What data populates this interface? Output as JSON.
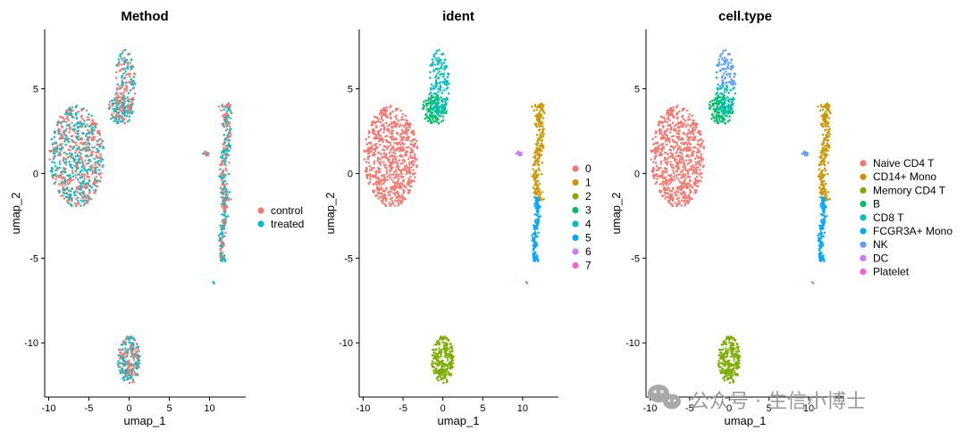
{
  "chart_data": [
    {
      "type": "scatter",
      "title": "Method",
      "xlabel": "umap_1",
      "ylabel": "umap_2",
      "xlim": [
        -10.5,
        14.5
      ],
      "ylim": [
        -13.2,
        8.5
      ],
      "xticks": [
        -10,
        -5,
        0,
        5,
        10
      ],
      "yticks": [
        -10,
        -5,
        0,
        5
      ],
      "grid": false,
      "legend": "right",
      "color_by": "group",
      "series": [
        {
          "name": "control",
          "color": "#F8766D"
        },
        {
          "name": "treated",
          "color": "#00BFC4"
        }
      ]
    },
    {
      "type": "scatter",
      "title": "ident",
      "xlabel": "umap_1",
      "ylabel": "umap_2",
      "xlim": [
        -10.5,
        14.5
      ],
      "ylim": [
        -13.2,
        8.5
      ],
      "xticks": [
        -10,
        -5,
        0,
        5,
        10
      ],
      "yticks": [
        -10,
        -5,
        0,
        5
      ],
      "grid": false,
      "legend": "right",
      "color_by": "cluster",
      "series": [
        {
          "name": "0",
          "color": "#F8766D"
        },
        {
          "name": "1",
          "color": "#CD9600"
        },
        {
          "name": "2",
          "color": "#7CAE00"
        },
        {
          "name": "3",
          "color": "#00BE67"
        },
        {
          "name": "4",
          "color": "#00BFC4"
        },
        {
          "name": "5",
          "color": "#00A9FF"
        },
        {
          "name": "6",
          "color": "#C77CFF"
        },
        {
          "name": "7",
          "color": "#FF61CC"
        }
      ]
    },
    {
      "type": "scatter",
      "title": "cell.type",
      "xlabel": "umap_1",
      "ylabel": "umap_2",
      "xlim": [
        -10.5,
        14.5
      ],
      "ylim": [
        -13.2,
        8.5
      ],
      "xticks": [
        -10,
        -5,
        0,
        5,
        10
      ],
      "yticks": [
        -10,
        -5,
        0,
        5
      ],
      "grid": false,
      "legend": "right",
      "color_by": "cluster",
      "series": [
        {
          "name": "Naive CD4 T",
          "color": "#F8766D"
        },
        {
          "name": "CD14+ Mono",
          "color": "#CD9600"
        },
        {
          "name": "Memory CD4 T",
          "color": "#7CAE00"
        },
        {
          "name": "B",
          "color": "#00BE67"
        },
        {
          "name": "CD8 T",
          "color": "#00BFC4"
        },
        {
          "name": "FCGR3A+ Mono",
          "color": "#00A9FF"
        },
        {
          "name": "NK",
          "color": "#619CFF"
        },
        {
          "name": "DC",
          "color": "#C77CFF"
        },
        {
          "name": "Platelet",
          "color": "#FF61CC"
        }
      ]
    }
  ],
  "clusters": [
    {
      "id": 0,
      "kind": "ellipse",
      "center": [
        -6.5,
        1.0
      ],
      "radius": [
        3.4,
        3.0
      ],
      "n": 700
    },
    {
      "id": 1,
      "kind": "strip",
      "center": [
        12.0,
        1.3
      ],
      "radius": [
        0.7,
        2.9
      ],
      "n": 210
    },
    {
      "id": 2,
      "kind": "ellipse",
      "center": [
        0.0,
        -11.0
      ],
      "radius": [
        1.4,
        1.4
      ],
      "n": 230
    },
    {
      "id": 3,
      "kind": "ellipse",
      "center": [
        -1.0,
        3.8
      ],
      "radius": [
        1.6,
        0.9
      ],
      "n": 140
    },
    {
      "id": 4,
      "kind": "ellipse",
      "center": [
        -0.5,
        5.3
      ],
      "radius": [
        1.3,
        2.0
      ],
      "n": 140
    },
    {
      "id": 5,
      "kind": "strip",
      "center": [
        11.7,
        -3.3
      ],
      "radius": [
        0.4,
        1.9
      ],
      "n": 130
    },
    {
      "id": 6,
      "kind": "ellipse",
      "center": [
        9.7,
        1.2
      ],
      "radius": [
        0.5,
        0.15
      ],
      "n": 14
    },
    {
      "id": 7,
      "kind": "ellipse",
      "center": [
        10.5,
        -6.5
      ],
      "radius": [
        0.1,
        0.1
      ],
      "n": 2
    }
  ],
  "cell_type_by_cluster": [
    0,
    1,
    2,
    3,
    4,
    5,
    6,
    7
  ],
  "nk_subset": {
    "cluster": 4,
    "min_x": -1.5,
    "min_y": 5.2,
    "color_index": 6
  },
  "watermark": "公众号 · 生信小博士"
}
